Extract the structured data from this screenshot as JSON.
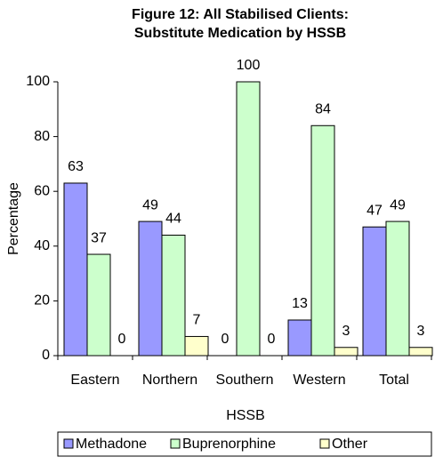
{
  "chart_data": {
    "type": "bar",
    "title": [
      "Figure 12: All Stabilised Clients:",
      "Substitute Medication by HSSB"
    ],
    "x_label": "HSSB",
    "y_label": "Percentage",
    "categories": [
      "Eastern",
      "Northern",
      "Southern",
      "Western",
      "Total"
    ],
    "series": [
      {
        "name": "Methadone",
        "color": "#9999ff",
        "values": [
          63,
          49,
          0,
          13,
          47
        ]
      },
      {
        "name": "Buprenorphine",
        "color": "#ccffcc",
        "values": [
          37,
          44,
          100,
          84,
          49
        ]
      },
      {
        "name": "Other",
        "color": "#ffffcc",
        "values": [
          0,
          7,
          0,
          3,
          3
        ]
      }
    ],
    "ylim": [
      0,
      100
    ],
    "yticks": [
      0,
      20,
      40,
      60,
      80,
      100
    ],
    "grid": false,
    "legend": "bottom"
  }
}
